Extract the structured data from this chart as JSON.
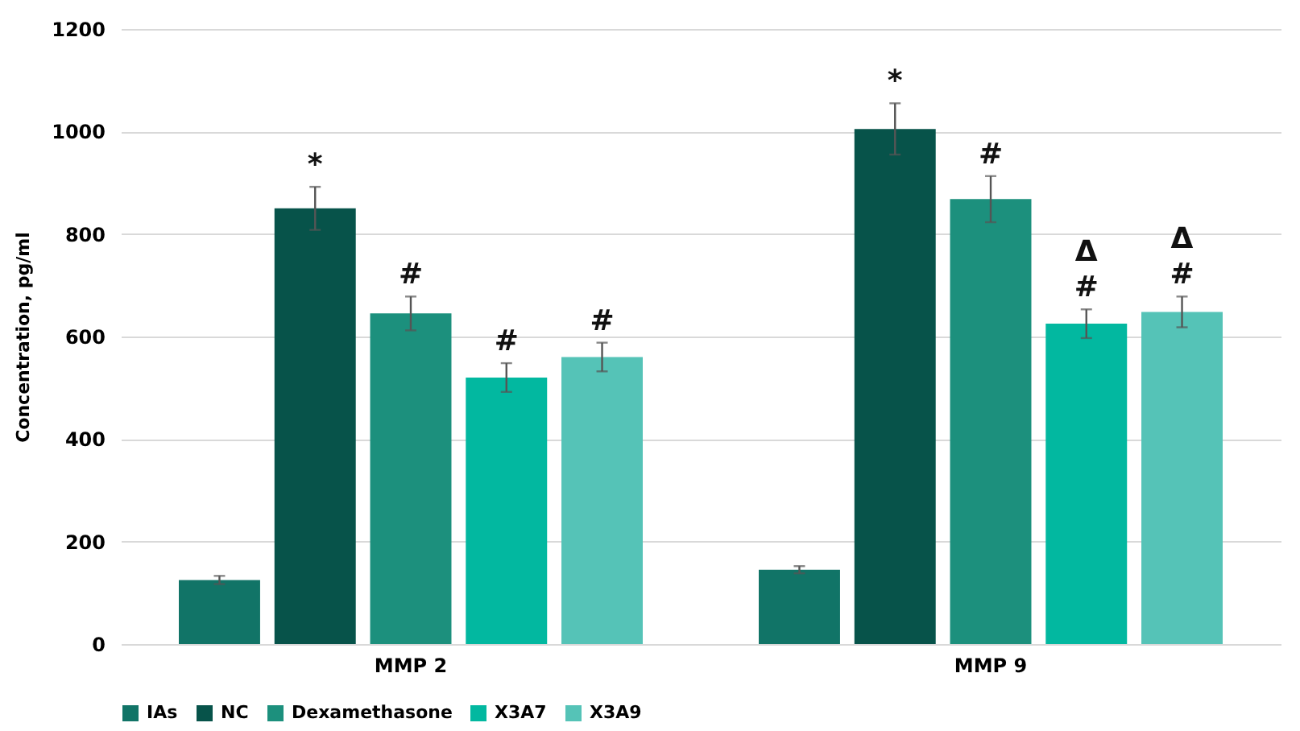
{
  "chart_data": {
    "type": "bar",
    "ylabel": "Concentration, pg/ml",
    "categories": [
      "MMP 2",
      "MMP 9"
    ],
    "series": [
      {
        "name": "IAs",
        "color": "#117467",
        "values": [
          125,
          145
        ],
        "errors": [
          8,
          7
        ]
      },
      {
        "name": "NC",
        "color": "#07534a",
        "values": [
          850,
          1005
        ],
        "errors": [
          42,
          50
        ],
        "value_labels": [
          "*",
          "*"
        ]
      },
      {
        "name": "Dexamethasone",
        "color": "#1c907d",
        "values": [
          645,
          868
        ],
        "errors": [
          33,
          45
        ],
        "value_labels": [
          "#",
          "#"
        ]
      },
      {
        "name": "X3A7",
        "color": "#02b8a0",
        "values": [
          520,
          625
        ],
        "errors": [
          28,
          28
        ],
        "value_labels": [
          "#",
          "Δ\n#"
        ]
      },
      {
        "name": "X3A9",
        "color": "#55c3b7",
        "values": [
          560,
          648
        ],
        "errors": [
          28,
          30
        ],
        "value_labels": [
          "#",
          "Δ\n#"
        ]
      }
    ],
    "ylim": [
      0,
      1200
    ],
    "yticks": [
      0,
      200,
      400,
      600,
      800,
      1000,
      1200
    ],
    "grid": "y",
    "legend": "bottom"
  }
}
